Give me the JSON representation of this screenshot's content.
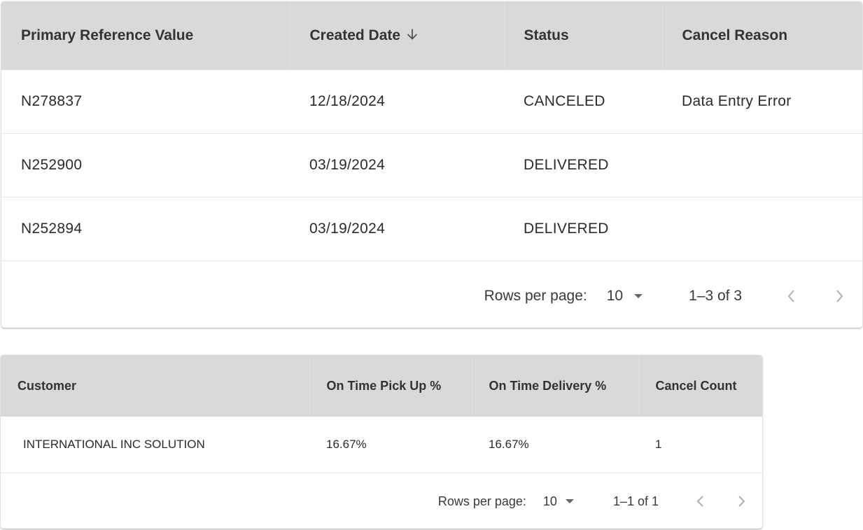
{
  "orders": {
    "columns": [
      "Primary Reference Value",
      "Created Date",
      "Status",
      "Cancel Reason"
    ],
    "rows": [
      [
        "N278837",
        "12/18/2024",
        "CANCELED",
        "Data Entry Error"
      ],
      [
        "N252900",
        "03/19/2024",
        "DELIVERED",
        ""
      ],
      [
        "N252894",
        "03/19/2024",
        "DELIVERED",
        ""
      ]
    ],
    "pagination": {
      "rows_per_page_label": "Rows per page:",
      "rows_per_page": "10",
      "range": "1–3 of 3"
    }
  },
  "customers": {
    "columns": [
      "Customer",
      "On Time Pick Up %",
      "On Time Delivery %",
      "Cancel Count"
    ],
    "rows": [
      [
        "INTERNATIONAL INC SOLUTION",
        "16.67%",
        "16.67%",
        "1"
      ]
    ],
    "pagination": {
      "rows_per_page_label": "Rows per page:",
      "rows_per_page": "10",
      "range": "1–1 of 1"
    }
  },
  "icons": {
    "sort": "arrow-down-icon",
    "dropdown": "caret-down-icon",
    "prev": "chevron-left-icon",
    "next": "chevron-right-icon"
  }
}
